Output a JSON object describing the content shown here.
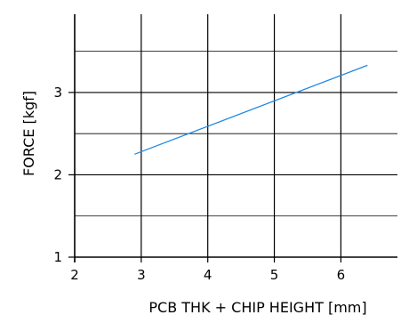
{
  "chart_data": {
    "type": "line",
    "xlabel": "PCB THK + CHIP HEIGHT [mm]",
    "ylabel": "FORCE [kgf]",
    "xlim": [
      2,
      6.85
    ],
    "ylim": [
      1,
      3.95
    ],
    "x_ticks": [
      2,
      3,
      4,
      5,
      6
    ],
    "x_tick_labels": [
      "2",
      "3",
      "4",
      "5",
      "6"
    ],
    "y_ticks": [
      1,
      2,
      3
    ],
    "y_tick_labels": [
      "1",
      "2",
      "3"
    ],
    "y_minor_gridlines": [
      1.5,
      2.5,
      3.5
    ],
    "grid": true,
    "line_color": "#1e88e5",
    "series": [
      {
        "x": [
          2.9,
          6.4
        ],
        "y": [
          2.25,
          3.33
        ]
      }
    ]
  }
}
